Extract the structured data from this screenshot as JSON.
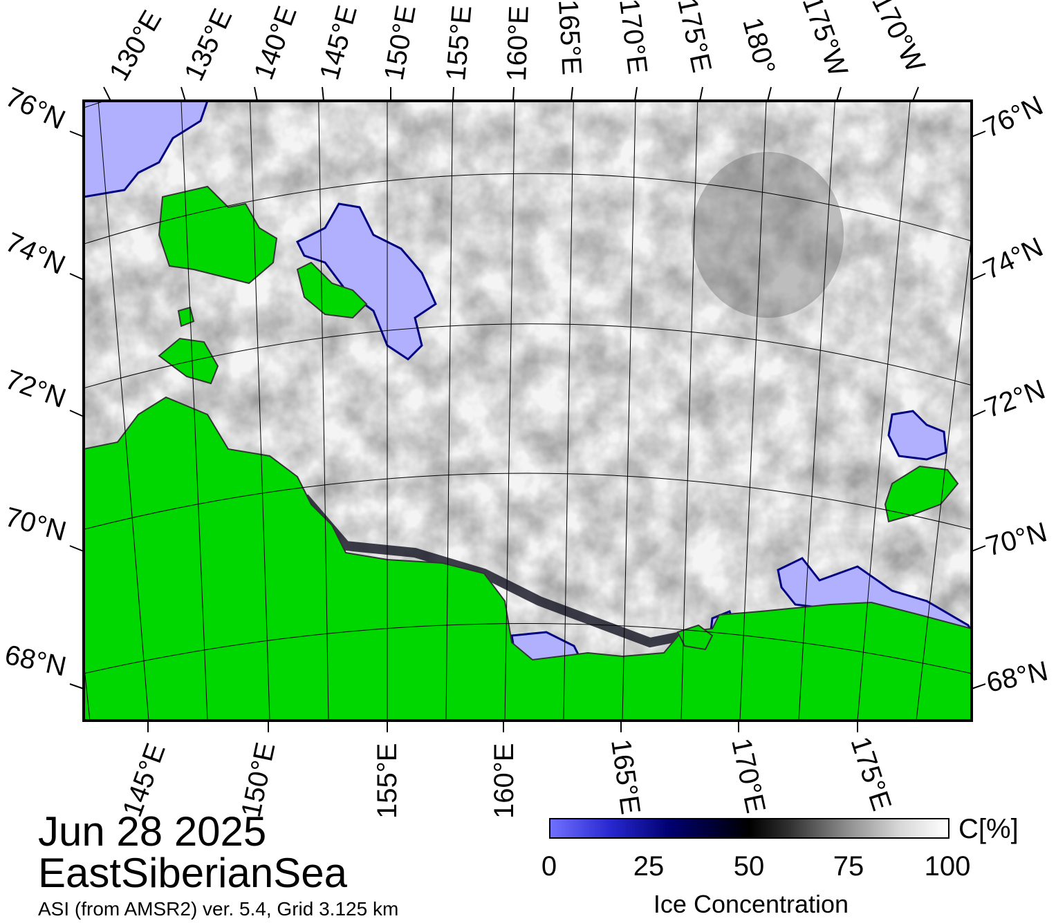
{
  "title": {
    "date": "Jun 28 2025",
    "region": "EastSiberianSea",
    "source": "ASI (from AMSR2) ver. 5.4,  Grid 3.125 km"
  },
  "colorbar": {
    "ticks": [
      "0",
      "25",
      "50",
      "75",
      "100"
    ],
    "unit": "C[%]",
    "label": "Ice Concentration",
    "colors": {
      "0": "#7070ff",
      "25": "#000070",
      "50": "#000000",
      "75": "#909090",
      "100": "#ffffff"
    }
  },
  "map": {
    "land_color": "#00d700",
    "low_ice_color": "#b0b0ff",
    "top_labels": [
      "130°E",
      "135°E",
      "140°E",
      "145°E",
      "150°E",
      "155°E",
      "160°E",
      "165°E",
      "170°E",
      "175°E",
      "180°",
      "175°W",
      "170°W"
    ],
    "bottom_labels": [
      "145°E",
      "150°E",
      "155°E",
      "160°E",
      "165°E",
      "170°E",
      "175°E"
    ],
    "left_labels": [
      "76°N",
      "74°N",
      "72°N",
      "70°N",
      "68°N"
    ],
    "right_labels": [
      "76°N",
      "74°N",
      "72°N",
      "70°N",
      "68°N"
    ]
  }
}
